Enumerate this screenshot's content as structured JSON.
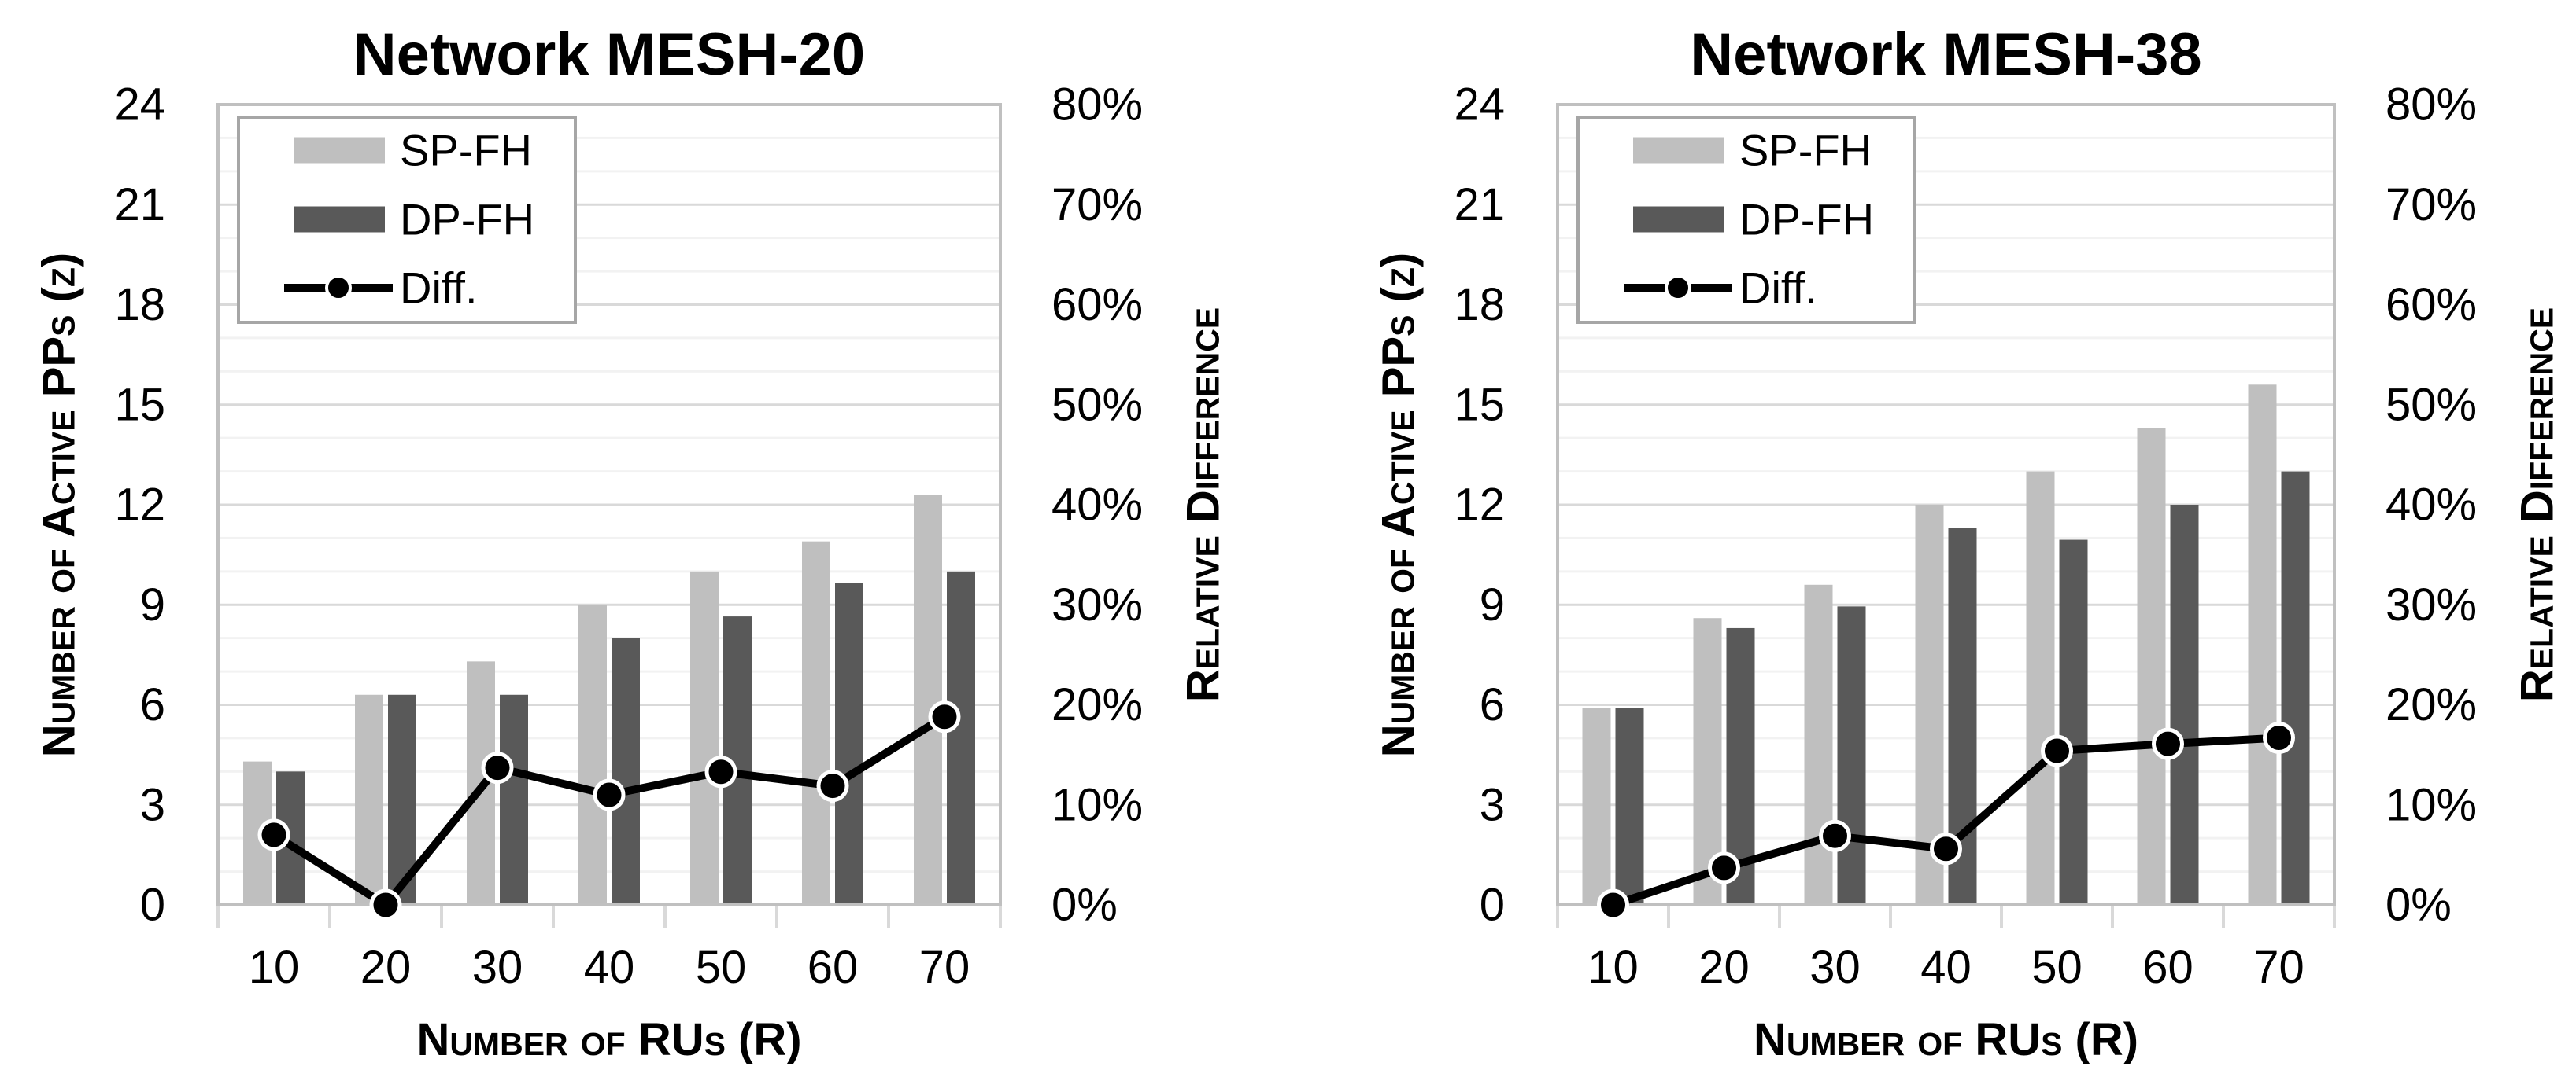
{
  "figure": {
    "background": "#FFFFFF",
    "colors": {
      "sp_fh_bar": "#BFBFBF",
      "dp_fh_bar": "#595959",
      "diff_line": "#000000",
      "marker_fill": "#000000",
      "marker_ring": "#FFFFFF",
      "grid_major": "#D9D9D9",
      "grid_minor": "#F2F2F2",
      "plot_border": "#C0C0C0",
      "axis_tick": "#D9D9D9",
      "legend_border": "#A6A6A6",
      "text": "#000000"
    }
  },
  "legend": {
    "items": [
      {
        "label": "SP-FH",
        "type": "bar-swatch",
        "color_key": "sp_fh_bar"
      },
      {
        "label": "DP-FH",
        "type": "bar-swatch",
        "color_key": "dp_fh_bar"
      },
      {
        "label": "Diff.",
        "type": "line-marker",
        "color_key": "diff_line"
      }
    ]
  },
  "chart_data": [
    {
      "type": "bar+line",
      "title": "Network MESH-20",
      "xlabel": "Number of RUs (R)",
      "ylabel_left": "Number of Active PPs (z)",
      "ylabel_right": "Relative Difference",
      "grid": "horizontal, minor every 1 unit, major every 3 units",
      "legend_position": "top-left inside plot",
      "categories": [
        10,
        20,
        30,
        40,
        50,
        60,
        70
      ],
      "series": [
        {
          "name": "SP-FH",
          "type": "bar",
          "axis": "left",
          "values": [
            4.3,
            6.3,
            7.3,
            9.0,
            10.0,
            10.9,
            12.3
          ]
        },
        {
          "name": "DP-FH",
          "type": "bar",
          "axis": "left",
          "values": [
            4.0,
            6.3,
            6.3,
            8.0,
            8.65,
            9.65,
            10.0
          ]
        },
        {
          "name": "Diff.",
          "type": "line",
          "axis": "right",
          "values_percent": [
            7.0,
            0.0,
            13.7,
            11.0,
            13.3,
            11.9,
            18.8
          ]
        }
      ],
      "axes": {
        "left": {
          "min": 0,
          "max": 24,
          "step": 3,
          "tick_labels": [
            "0",
            "3",
            "6",
            "9",
            "12",
            "15",
            "18",
            "21",
            "24"
          ]
        },
        "right": {
          "min": 0,
          "max": 80,
          "step": 10,
          "tick_labels": [
            "0%",
            "10%",
            "20%",
            "30%",
            "40%",
            "50%",
            "60%",
            "70%",
            "80%"
          ]
        },
        "x": {
          "tick_labels": [
            "10",
            "20",
            "30",
            "40",
            "50",
            "60",
            "70"
          ]
        }
      }
    },
    {
      "type": "bar+line",
      "title": "Network MESH-38",
      "xlabel": "Number of RUs (R)",
      "ylabel_left": "Number of Active PPs (z)",
      "ylabel_right": "Relative Difference",
      "grid": "horizontal, minor every 1 unit, major every 3 units",
      "legend_position": "top-left inside plot",
      "categories": [
        10,
        20,
        30,
        40,
        50,
        60,
        70
      ],
      "series": [
        {
          "name": "SP-FH",
          "type": "bar",
          "axis": "left",
          "values": [
            5.9,
            8.6,
            9.6,
            12.0,
            13.0,
            14.3,
            15.6
          ]
        },
        {
          "name": "DP-FH",
          "type": "bar",
          "axis": "left",
          "values": [
            5.9,
            8.3,
            8.95,
            11.3,
            10.95,
            12.0,
            13.0
          ]
        },
        {
          "name": "Diff.",
          "type": "line",
          "axis": "right",
          "values_percent": [
            0.0,
            3.7,
            6.9,
            5.6,
            15.4,
            16.1,
            16.7
          ]
        }
      ],
      "axes": {
        "left": {
          "min": 0,
          "max": 24,
          "step": 3,
          "tick_labels": [
            "0",
            "3",
            "6",
            "9",
            "12",
            "15",
            "18",
            "21",
            "24"
          ]
        },
        "right": {
          "min": 0,
          "max": 80,
          "step": 10,
          "tick_labels": [
            "0%",
            "10%",
            "20%",
            "30%",
            "40%",
            "50%",
            "60%",
            "70%",
            "80%"
          ]
        },
        "x": {
          "tick_labels": [
            "10",
            "20",
            "30",
            "40",
            "50",
            "60",
            "70"
          ]
        }
      }
    }
  ]
}
